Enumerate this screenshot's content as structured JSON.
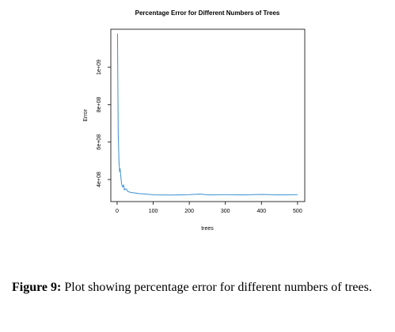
{
  "chart_data": {
    "type": "line",
    "title": "Percentage Error for Different Numbers of Trees",
    "x_label": "trees",
    "y_label": "Error",
    "x": [
      1,
      2,
      3,
      5,
      7,
      8,
      10,
      12,
      15,
      18,
      20,
      25,
      30,
      40,
      50,
      60,
      80,
      100,
      150,
      200,
      230,
      250,
      300,
      350,
      400,
      450,
      500
    ],
    "series": [
      {
        "color": "#3a8fd0",
        "values": [
          1180000000,
          900000000,
          650000000,
          500000000,
          440000000,
          460000000,
          420000000,
          380000000,
          360000000,
          370000000,
          345000000,
          350000000,
          335000000,
          330000000,
          328000000,
          325000000,
          322000000,
          318000000,
          317000000,
          319000000,
          322000000,
          318000000,
          319000000,
          318000000,
          320000000,
          318000000,
          319000000
        ]
      }
    ],
    "xlim": [
      -17.5,
      520
    ],
    "xticks": [
      0,
      100,
      200,
      300,
      400,
      500
    ],
    "ylim": [
      282000000,
      1203000000
    ],
    "yticks": [
      {
        "value": 400000000,
        "label": "4e+08"
      },
      {
        "value": 600000000,
        "label": "6e+08"
      },
      {
        "value": 800000000,
        "label": "8e+08"
      },
      {
        "value": 1000000000,
        "label": "1e+09"
      }
    ]
  },
  "caption": {
    "label": "Figure 9:",
    "text": "Plot showing percentage error for different numbers of trees."
  }
}
